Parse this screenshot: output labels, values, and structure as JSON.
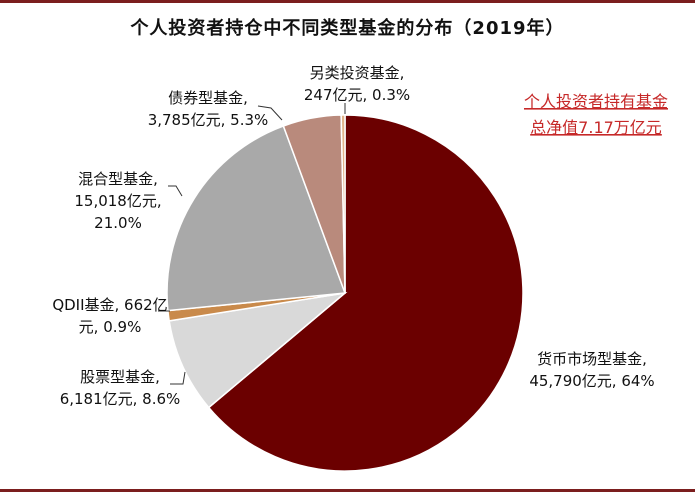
{
  "title": "个人投资者持仓中不同类型基金的分布（2019年）",
  "note_lines": [
    "个人投资者持有基金",
    "总净值7.17万亿元"
  ],
  "chart_data": {
    "type": "pie",
    "title": "个人投资者持仓中不同类型基金的分布（2019年）",
    "unit": "亿元",
    "slices": [
      {
        "name": "货币市场型基金",
        "value": 45790,
        "percent": 64,
        "color": "#6b0000",
        "label_lines": [
          "货币市场型基金,",
          "45,790亿元, 64%"
        ]
      },
      {
        "name": "股票型基金",
        "value": 6181,
        "percent": 8.6,
        "color": "#d9d9d9",
        "label_lines": [
          "股票型基金,",
          "6,181亿元, 8.6%"
        ]
      },
      {
        "name": "QDII基金",
        "value": 662,
        "percent": 0.9,
        "color": "#c98a4b",
        "label_lines": [
          "QDII基金, 662亿",
          "元, 0.9%"
        ]
      },
      {
        "name": "混合型基金",
        "value": 15018,
        "percent": 21.0,
        "color": "#a9a9a9",
        "label_lines": [
          "混合型基金,",
          "15,018亿元,",
          "21.0%"
        ]
      },
      {
        "name": "债券型基金",
        "value": 3785,
        "percent": 5.3,
        "color": "#b98a7c",
        "label_lines": [
          "债券型基金,",
          "3,785亿元, 5.3%"
        ]
      },
      {
        "name": "另类投资基金",
        "value": 247,
        "percent": 0.3,
        "color": "#e0b48a",
        "label_lines": [
          "另类投资基金,",
          "247亿元, 0.3%"
        ]
      }
    ]
  }
}
